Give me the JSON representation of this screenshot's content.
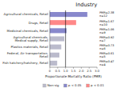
{
  "chart_data": {
    "type": "bar",
    "orientation": "horizontal",
    "title": "Industry",
    "xlabel": "Proportionate Mortality Ratio (PMR)",
    "categories": [
      "Agricultural chemicals, Retail",
      "Drugs, Retail",
      "Medicinal chemicals, Retail",
      "Agricultural chemicals, Medical supply, Retail",
      "Plastics materials, Retail",
      "Federal, Air transportation, Retail",
      "Fish hatchery/hatchery, Retail"
    ],
    "values": [
      2.38,
      1.67,
      1.06,
      0.92,
      0.73,
      0.61,
      0.47
    ],
    "colors": [
      "#8888cc",
      "#ff8888",
      "#8888cc",
      "#bbbbcc",
      "#bbbbcc",
      "#bbbbcc",
      "#bbbbcc"
    ],
    "data_labels": true,
    "value_labels": [
      "PMR=2.38",
      "PMR=1.67",
      "PMR=1.06",
      "PMR=0.92",
      "PMR=0.73",
      "PMR=0.61",
      "PMR=0.47"
    ],
    "n_labels": [
      "n=12",
      "n=10",
      "n=9",
      "n=7",
      "n=6",
      "n=5",
      "n=4"
    ],
    "xlim": [
      0,
      3.0
    ],
    "xticks": [
      0,
      0.5,
      {
        "value": 1.0,
        "label": "1.0"
      },
      1.5,
      {
        "value": 2.0,
        "label": "2.0"
      },
      2.5,
      {
        "value": 3.0,
        "label": "3.0"
      }
    ],
    "ref_line": 1.0,
    "legend": "bottom",
    "legend_entries": [
      {
        "name": "Non-sig",
        "color": "#bbbbcc"
      },
      {
        "name": "p < 0.05",
        "color": "#8888cc"
      },
      {
        "name": "p < 0.01",
        "color": "#ff8888"
      }
    ]
  }
}
